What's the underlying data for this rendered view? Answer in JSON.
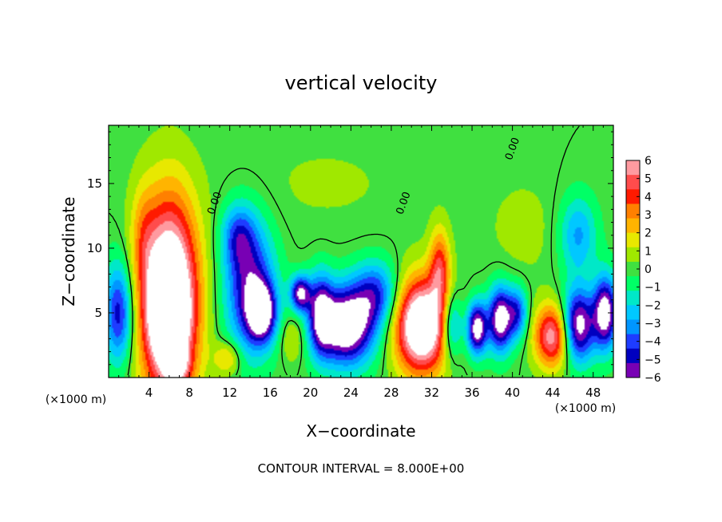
{
  "chart_data": {
    "type": "heatmap",
    "title": "vertical velocity",
    "xlabel": "X−coordinate",
    "ylabel": "Z−coordinate",
    "x_unit_left": "(×1000 m)",
    "x_unit_right": "(×1000 m)",
    "footer": "CONTOUR INTERVAL = 8.000E+00",
    "xlim": [
      0,
      50
    ],
    "ylim": [
      0,
      19.5
    ],
    "x_ticks": [
      4,
      8,
      12,
      16,
      20,
      24,
      28,
      32,
      36,
      40,
      44,
      48
    ],
    "x_tick_labels": [
      "4",
      "8",
      "12",
      "16",
      "20",
      "24",
      "28",
      "32",
      "36",
      "40",
      "44",
      "48"
    ],
    "y_ticks": [
      5,
      10,
      15
    ],
    "y_tick_labels": [
      "5",
      "10",
      "15"
    ],
    "colorbar": {
      "min": -6,
      "max": 6,
      "tick_values": [
        6,
        5,
        4,
        3,
        2,
        1,
        0,
        -1,
        -2,
        -3,
        -4,
        -5,
        -6
      ],
      "tick_labels": [
        "6",
        "5",
        "4",
        "3",
        "2",
        "1",
        "0",
        "−1",
        "−2",
        "−3",
        "−4",
        "−5",
        "−6"
      ],
      "colors": [
        "#ff9aa0",
        "#ff4c4c",
        "#ff1a00",
        "#ff8000",
        "#ffb400",
        "#e8e800",
        "#a0e800",
        "#40e040",
        "#00ff66",
        "#00e8c8",
        "#00c8ff",
        "#0096ff",
        "#1e3cff",
        "#0000c0",
        "#7800b4"
      ]
    },
    "contour_labels": [
      {
        "text": "0.00",
        "x": 10.8,
        "y": 13.4
      },
      {
        "text": "0.00",
        "x": 29.5,
        "y": 13.4
      },
      {
        "text": "0.00",
        "x": 40.3,
        "y": 17.6
      }
    ],
    "features": [
      {
        "x": 6.0,
        "z": 6.0,
        "rx": 2.8,
        "rz": 7.5,
        "amp": 10
      },
      {
        "x": 6.0,
        "z": 4.5,
        "rx": 1.6,
        "rz": 2.8,
        "amp": 4
      },
      {
        "x": 6.8,
        "z": 1.0,
        "rx": 1.2,
        "rz": 1.2,
        "amp": 3
      },
      {
        "x": 3.4,
        "z": 11.0,
        "rx": 1.2,
        "rz": 4.0,
        "amp": 1.5
      },
      {
        "x": 1.0,
        "z": 5.0,
        "rx": 1.4,
        "rz": 3.8,
        "amp": -5
      },
      {
        "x": 11.8,
        "z": 1.5,
        "rx": 1.3,
        "rz": 1.3,
        "amp": 2.5
      },
      {
        "x": 14.0,
        "z": 7.0,
        "rx": 2.4,
        "rz": 5.0,
        "amp": -5.5
      },
      {
        "x": 15.2,
        "z": 5.0,
        "rx": 1.4,
        "rz": 2.2,
        "amp": -6
      },
      {
        "x": 12.8,
        "z": 11.0,
        "rx": 1.6,
        "rz": 2.4,
        "amp": -3
      },
      {
        "x": 19.0,
        "z": 6.5,
        "rx": 1.0,
        "rz": 1.4,
        "amp": -6
      },
      {
        "x": 18.2,
        "z": 3.0,
        "rx": 1.2,
        "rz": 1.8,
        "amp": 1.5
      },
      {
        "x": 21.0,
        "z": 5.0,
        "rx": 1.2,
        "rz": 3.0,
        "amp": -5
      },
      {
        "x": 23.5,
        "z": 4.0,
        "rx": 2.8,
        "rz": 3.0,
        "amp": -8
      },
      {
        "x": 26.5,
        "z": 6.5,
        "rx": 2.2,
        "rz": 2.5,
        "amp": -4
      },
      {
        "x": 31.0,
        "z": 4.0,
        "rx": 2.6,
        "rz": 3.6,
        "amp": 9
      },
      {
        "x": 32.8,
        "z": 8.5,
        "rx": 1.0,
        "rz": 3.0,
        "amp": 4
      },
      {
        "x": 34.0,
        "z": 4.0,
        "rx": 1.0,
        "rz": 2.5,
        "amp": -4
      },
      {
        "x": 36.5,
        "z": 3.8,
        "rx": 1.0,
        "rz": 2.0,
        "amp": -7
      },
      {
        "x": 38.8,
        "z": 4.5,
        "rx": 1.2,
        "rz": 2.5,
        "amp": -7
      },
      {
        "x": 40.5,
        "z": 5.0,
        "rx": 1.0,
        "rz": 2.0,
        "amp": -4
      },
      {
        "x": 44.0,
        "z": 3.2,
        "rx": 1.8,
        "rz": 2.4,
        "amp": 6
      },
      {
        "x": 46.5,
        "z": 4.0,
        "rx": 1.6,
        "rz": 2.8,
        "amp": -7
      },
      {
        "x": 49.2,
        "z": 5.0,
        "rx": 1.2,
        "rz": 2.8,
        "amp": -7
      },
      {
        "x": 46.5,
        "z": 11.0,
        "rx": 1.8,
        "rz": 3.0,
        "amp": -3
      },
      {
        "x": 41.0,
        "z": 11.5,
        "rx": 3.5,
        "rz": 4.0,
        "amp": 0.7
      },
      {
        "x": 21.5,
        "z": 15.0,
        "rx": 9.0,
        "rz": 4.0,
        "amp": 0.5
      }
    ]
  }
}
